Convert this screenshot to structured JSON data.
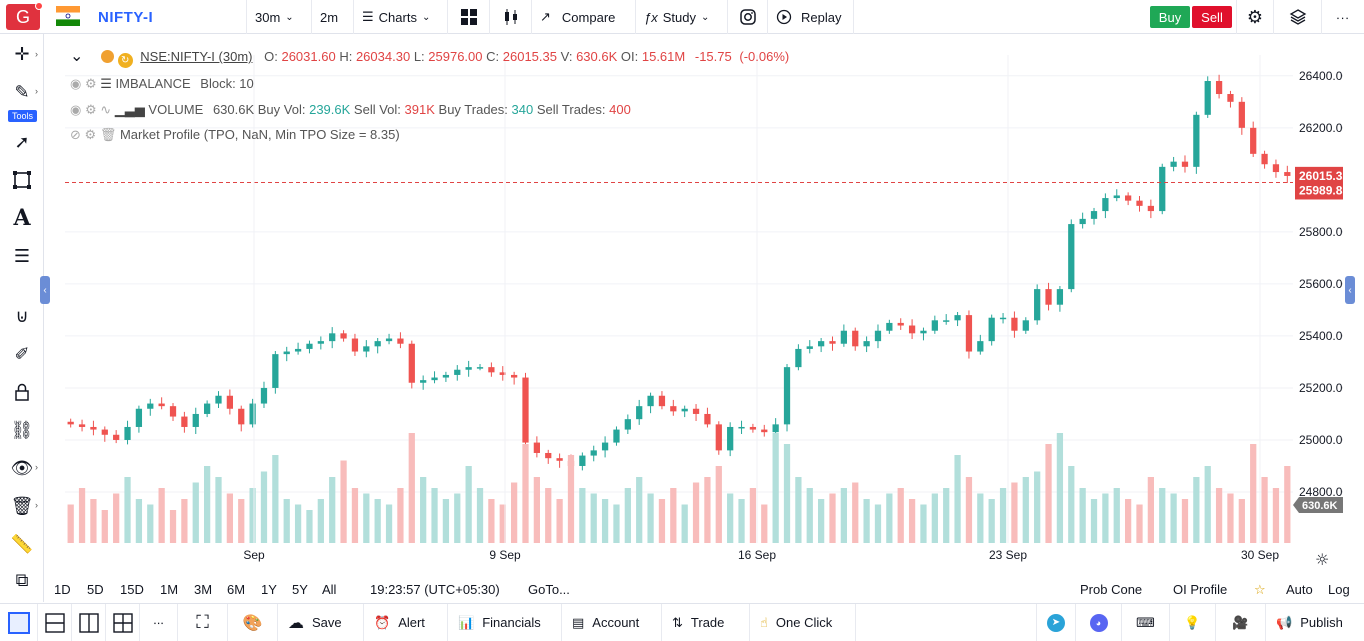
{
  "header": {
    "logo_letter": "G",
    "symbol": "NIFTY-I",
    "interval": "30m",
    "interval2": "2m",
    "charts_label": "Charts",
    "compare_label": "Compare",
    "study_label": "Study",
    "replay_label": "Replay",
    "buy_label": "Buy",
    "sell_label": "Sell"
  },
  "left_toolbar": {
    "tools_badge": "Tools"
  },
  "legend": {
    "title": "NSE:NIFTY-I (30m)",
    "o_label": "O:",
    "o": "26031.60",
    "h_label": "H:",
    "h": "26034.30",
    "l_label": "L:",
    "l": "25976.00",
    "c_label": "C:",
    "c": "26015.35",
    "v_label": "V:",
    "v": "630.6K",
    "oi_label": "OI:",
    "oi": "15.61M",
    "chg": "-15.75",
    "chg_pct": "(-0.06%)",
    "imbalance_name": "IMBALANCE",
    "imbalance_block": "Block: 10",
    "volume_name": "VOLUME",
    "volume_value": "630.6K",
    "buy_vol_label": "Buy Vol:",
    "buy_vol": "239.6K",
    "sell_vol_label": "Sell Vol:",
    "sell_vol": "391K",
    "buy_trades_label": "Buy Trades:",
    "buy_trades": "340",
    "sell_trades_label": "Sell Trades:",
    "sell_trades": "400",
    "market_profile": "Market Profile (TPO, NaN, Min TPO Size = 8.35)"
  },
  "chart_data": {
    "type": "candlestick",
    "y_ticks": [
      "26400.00",
      "26200.00",
      "26015.35",
      "25989.85",
      "25800.00",
      "25600.00",
      "25400.00",
      "25200.00",
      "25000.00",
      "24800.00"
    ],
    "y_tick_values": [
      26400,
      26200,
      25800,
      25600,
      25400,
      25200,
      25000,
      24800
    ],
    "last_price": "26015.35",
    "reference_price": "25989.85",
    "volume_label": "630.6K",
    "x_ticks": [
      "Sep",
      "9 Sep",
      "16 Sep",
      "23 Sep",
      "30 Sep"
    ],
    "ylim": [
      24750,
      26480
    ],
    "closes": [
      25060,
      25050,
      25040,
      25020,
      25000,
      25050,
      25120,
      25140,
      25130,
      25090,
      25050,
      25100,
      25140,
      25170,
      25120,
      25060,
      25140,
      25200,
      25330,
      25340,
      25350,
      25370,
      25380,
      25410,
      25390,
      25340,
      25360,
      25380,
      25390,
      25370,
      25220,
      25230,
      25240,
      25250,
      25270,
      25280,
      25280,
      25260,
      25250,
      25240,
      24990,
      24950,
      24930,
      24920,
      24900,
      24940,
      24960,
      24990,
      25040,
      25080,
      25130,
      25170,
      25130,
      25110,
      25120,
      25100,
      25060,
      24960,
      25050,
      25050,
      25040,
      25030,
      25060,
      25280,
      25350,
      25360,
      25380,
      25370,
      25420,
      25360,
      25380,
      25420,
      25450,
      25440,
      25410,
      25420,
      25460,
      25460,
      25480,
      25340,
      25380,
      25470,
      25470,
      25420,
      25460,
      25580,
      25520,
      25580,
      25830,
      25850,
      25880,
      25930,
      25940,
      25920,
      25900,
      25880,
      26050,
      26070,
      26050,
      26250,
      26380,
      26330,
      26300,
      26200,
      26100,
      26060,
      26030,
      26015
    ],
    "volumes": [
      0.35,
      0.5,
      0.4,
      0.3,
      0.45,
      0.6,
      0.4,
      0.35,
      0.5,
      0.3,
      0.4,
      0.55,
      0.7,
      0.6,
      0.45,
      0.4,
      0.5,
      0.65,
      0.8,
      0.4,
      0.35,
      0.3,
      0.4,
      0.6,
      0.75,
      0.5,
      0.45,
      0.4,
      0.35,
      0.5,
      1.0,
      0.6,
      0.5,
      0.4,
      0.45,
      0.7,
      0.5,
      0.4,
      0.35,
      0.55,
      0.9,
      0.6,
      0.5,
      0.4,
      0.8,
      0.5,
      0.45,
      0.4,
      0.35,
      0.5,
      0.6,
      0.45,
      0.4,
      0.5,
      0.35,
      0.55,
      0.6,
      0.7,
      0.45,
      0.4,
      0.5,
      0.35,
      1.0,
      0.9,
      0.6,
      0.5,
      0.4,
      0.45,
      0.5,
      0.55,
      0.4,
      0.35,
      0.45,
      0.5,
      0.4,
      0.35,
      0.45,
      0.5,
      0.8,
      0.6,
      0.45,
      0.4,
      0.5,
      0.55,
      0.6,
      0.65,
      0.9,
      1.0,
      0.7,
      0.5,
      0.4,
      0.45,
      0.5,
      0.4,
      0.35,
      0.6,
      0.5,
      0.45,
      0.4,
      0.6,
      0.7,
      0.5,
      0.45,
      0.4,
      0.9,
      0.6,
      0.5,
      0.7
    ]
  },
  "bottom": {
    "ranges": [
      "1D",
      "5D",
      "15D",
      "1M",
      "3M",
      "6M",
      "1Y",
      "5Y",
      "All"
    ],
    "time": "19:23:57 (UTC+05:30)",
    "goto": "GoTo...",
    "prob_cone": "Prob Cone",
    "oi_profile": "OI Profile",
    "auto": "Auto",
    "log": "Log"
  },
  "footer": {
    "save": "Save",
    "alert": "Alert",
    "financials": "Financials",
    "account": "Account",
    "trade": "Trade",
    "one_click": "One Click",
    "publish": "Publish"
  }
}
